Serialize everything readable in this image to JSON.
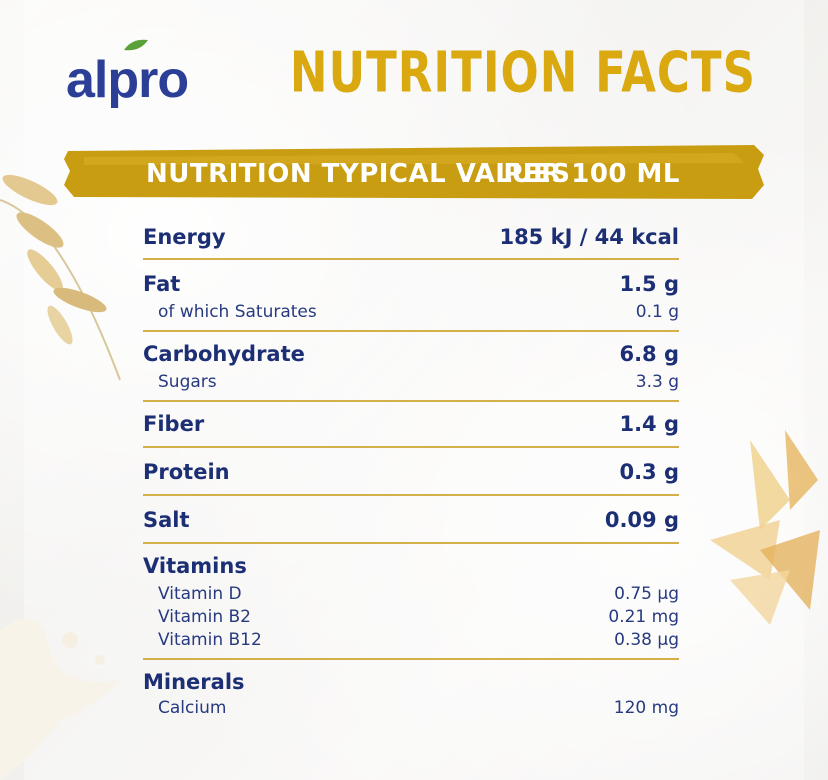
{
  "brand": {
    "logo_text": "alpro"
  },
  "header": {
    "title": "NUTRITION FACTS"
  },
  "banner": {
    "left": "NUTRITION TYPICAL VALUES",
    "right": "PER 100 ML"
  },
  "nutrition": {
    "energy": {
      "label": "Energy",
      "value": "185 kJ / 44 kcal"
    },
    "fat": {
      "label": "Fat",
      "value": "1.5 g"
    },
    "saturates": {
      "label": "of which Saturates",
      "value": "0.1 g"
    },
    "carbohydrate": {
      "label": "Carbohydrate",
      "value": "6.8 g"
    },
    "sugars": {
      "label": "Sugars",
      "value": "3.3 g"
    },
    "fiber": {
      "label": "Fiber",
      "value": "1.4 g"
    },
    "protein": {
      "label": "Protein",
      "value": "0.3 g"
    },
    "salt": {
      "label": "Salt",
      "value": "0.09 g"
    },
    "vitamins": {
      "label": "Vitamins",
      "vitamin_d": {
        "label": "Vitamin D",
        "value": "0.75 µg"
      },
      "vitamin_b2": {
        "label": "Vitamin B2",
        "value": "0.21 mg"
      },
      "vitamin_b12": {
        "label": "Vitamin B12",
        "value": "0.38 µg"
      }
    },
    "minerals": {
      "label": "Minerals",
      "calcium": {
        "label": "Calcium",
        "value": "120 mg"
      }
    }
  },
  "colors": {
    "brand_blue": "#2b3f97",
    "gold": "#d9a90f",
    "text_navy": "#1c2f75"
  },
  "icons": [
    "leaf-icon",
    "oat-stalk-decoration",
    "oat-flakes-decoration",
    "milk-splash-decoration"
  ]
}
